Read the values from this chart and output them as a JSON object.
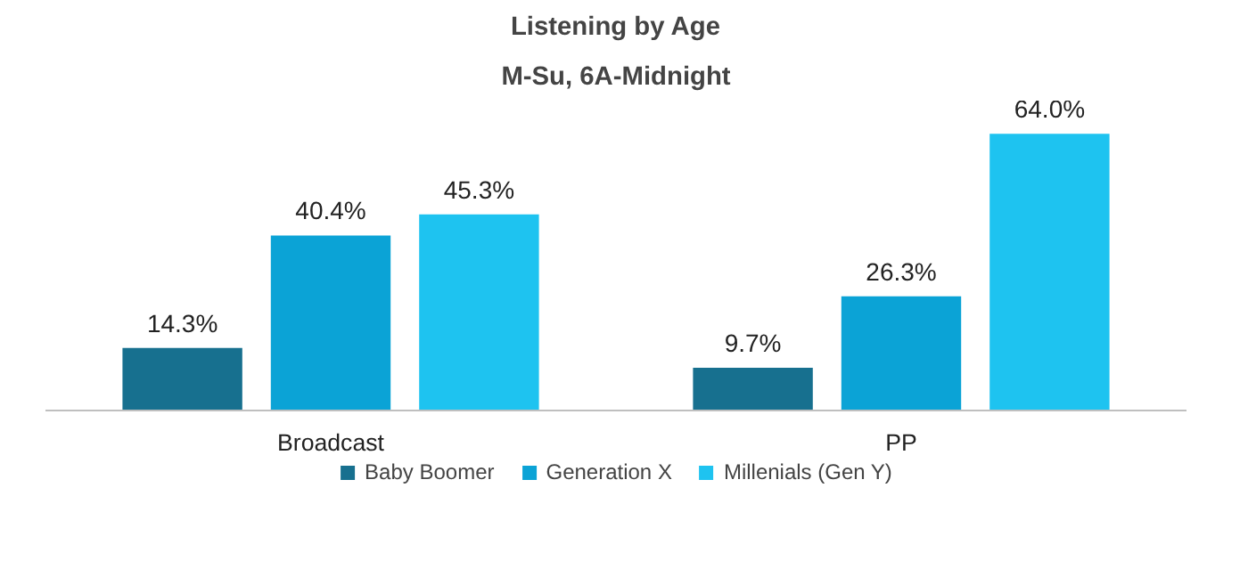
{
  "chart_data": {
    "type": "bar",
    "title": "Listening by Age",
    "subtitle": "M-Su, 6A-Midnight",
    "categories": [
      "Broadcast",
      "PP"
    ],
    "series": [
      {
        "name": "Baby Boomer",
        "color": "#17708f",
        "values": [
          14.3,
          9.7
        ],
        "value_labels": [
          "14.3%",
          "9.7%"
        ]
      },
      {
        "name": "Generation X",
        "color": "#0ba3d6",
        "values": [
          40.4,
          26.3
        ],
        "value_labels": [
          "40.4%",
          "26.3%"
        ]
      },
      {
        "name": "Millenials (Gen Y)",
        "color": "#1ec3f0",
        "values": [
          45.3,
          64.0
        ],
        "value_labels": [
          "45.3%",
          "64.0%"
        ]
      }
    ],
    "grid": false,
    "legend": "bottom"
  }
}
